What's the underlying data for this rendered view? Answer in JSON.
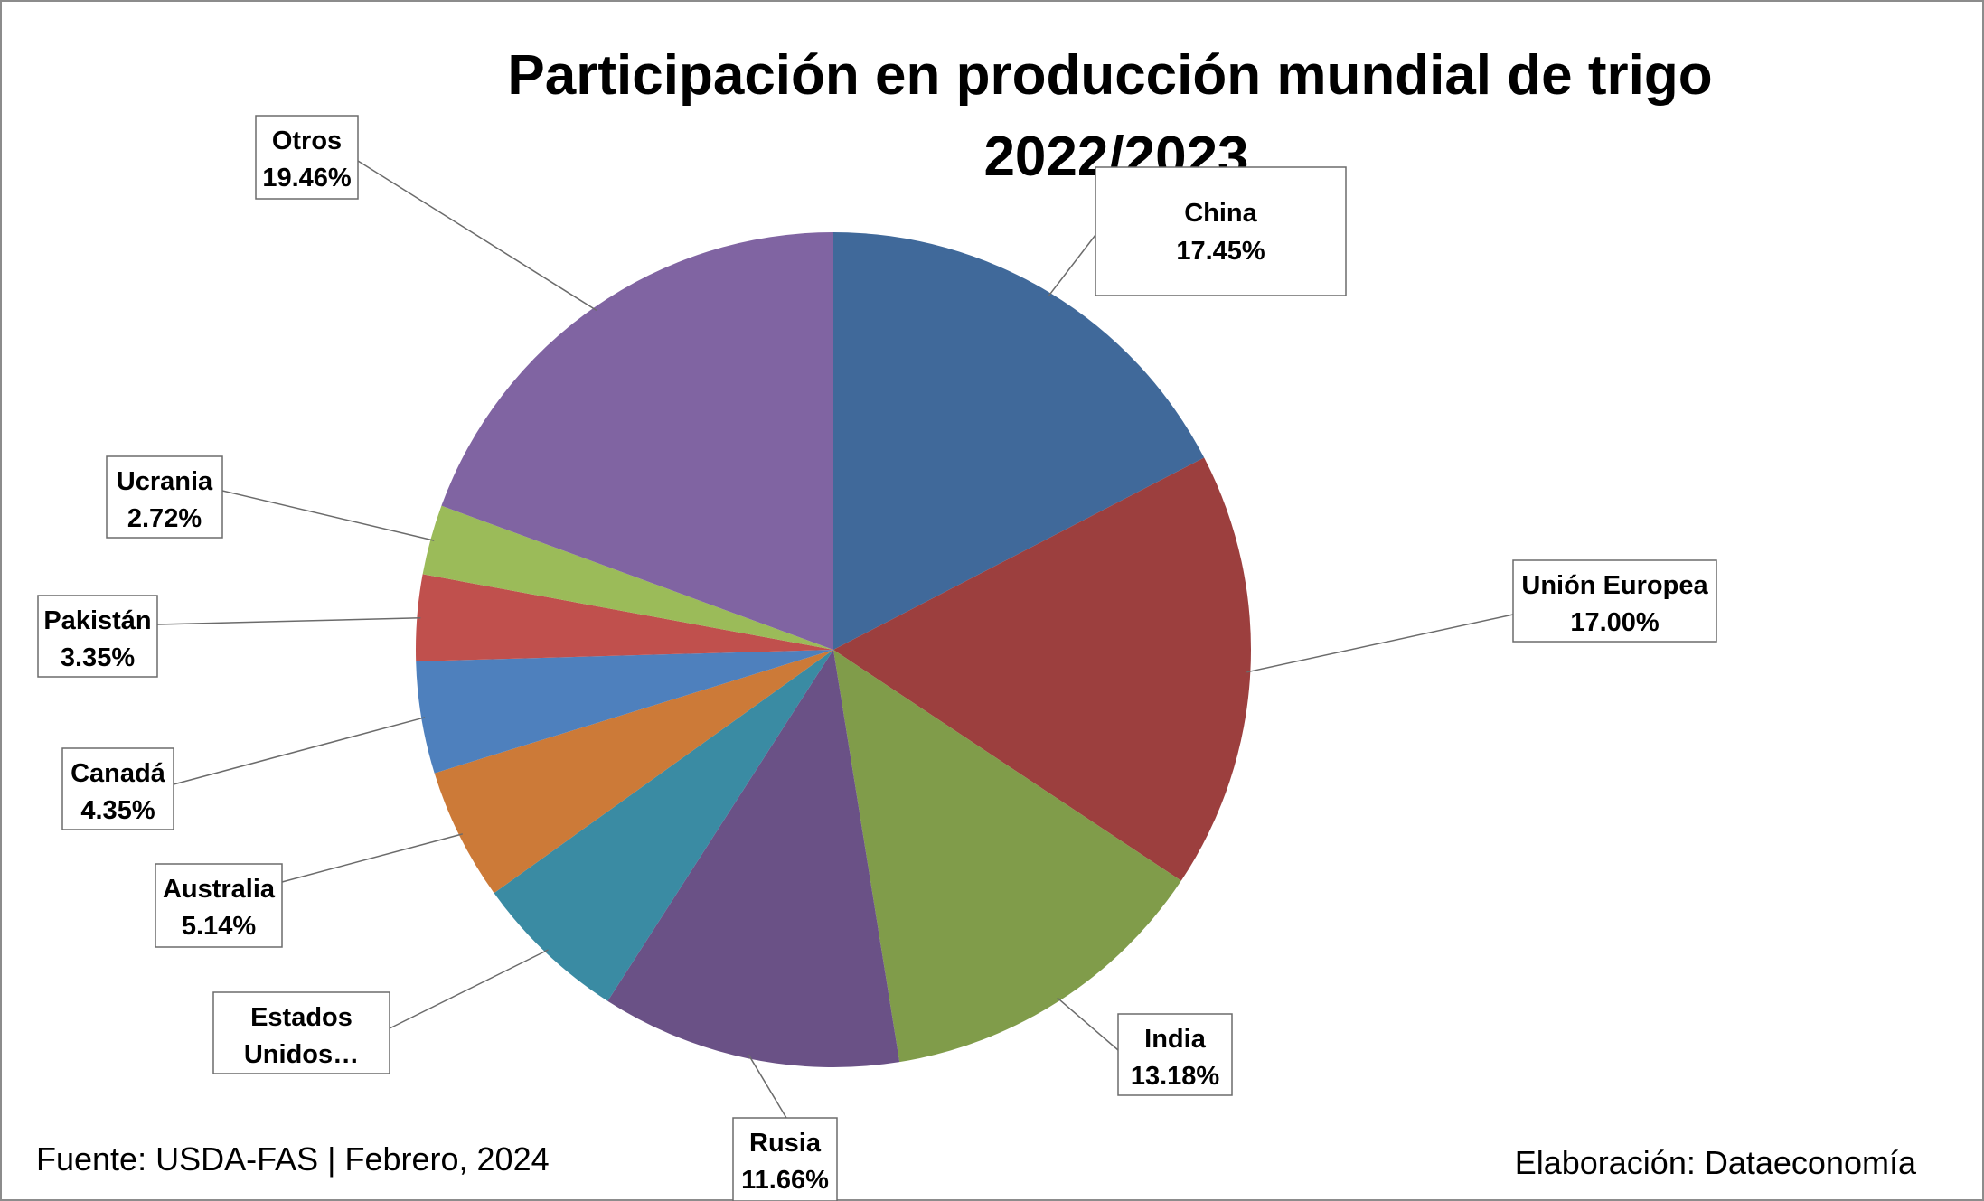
{
  "chart_data": {
    "type": "pie",
    "title": "Participación en producción mundial de trigo",
    "subtitle": "2022/2023",
    "unit": "%",
    "slices": [
      {
        "label": "China",
        "value": 17.45,
        "value_label": "17.45%",
        "color": "#40699A"
      },
      {
        "label": "Unión Europea",
        "value": 17.0,
        "value_label": "17.00%",
        "color": "#9C3F3E"
      },
      {
        "label": "India",
        "value": 13.18,
        "value_label": "13.18%",
        "color": "#809C4A"
      },
      {
        "label": "Rusia",
        "value": 11.66,
        "value_label": "11.66%",
        "color": "#6A5186"
      },
      {
        "label": "Estados Unidos…",
        "value": 6.03,
        "value_label": "",
        "color": "#3A8BA3"
      },
      {
        "label": "Australia",
        "value": 5.14,
        "value_label": "5.14%",
        "color": "#CC7A38"
      },
      {
        "label": "Canadá",
        "value": 4.35,
        "value_label": "4.35%",
        "color": "#4E80BD"
      },
      {
        "label": "Pakistán",
        "value": 3.35,
        "value_label": "3.35%",
        "color": "#C0504D"
      },
      {
        "label": "Ucrania",
        "value": 2.72,
        "value_label": "2.72%",
        "color": "#9BBB59"
      },
      {
        "label": "Otros",
        "value": 19.46,
        "value_label": "19.46%",
        "color": "#8064A2"
      }
    ],
    "legend": "none"
  },
  "footer": {
    "source": "Fuente: USDA-FAS | Febrero, 2024",
    "credit": "Elaboración: Dataeconomía"
  }
}
